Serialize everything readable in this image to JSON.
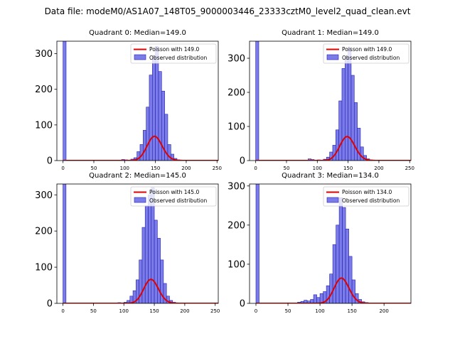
{
  "figure_title": "Data file: modeM0/AS1A07_148T05_9000003446_23333cztM0_level2_quad_clean.evt",
  "colors": {
    "bar_fill": "#7b7bea",
    "bar_edge": "#2222aa",
    "curve": "#e00000"
  },
  "chart_data": [
    {
      "type": "bar",
      "title": "Quadrant 0: Median=149.0",
      "xlim": [
        -10,
        252
      ],
      "ylim": [
        0,
        335
      ],
      "xticks": [
        0,
        50,
        100,
        150,
        200,
        250
      ],
      "yticks": [
        0,
        100,
        200,
        300
      ],
      "bar_width": 5,
      "bins": [
        [
          0,
          335
        ],
        [
          95,
          3
        ],
        [
          100,
          2
        ],
        [
          110,
          4
        ],
        [
          115,
          8
        ],
        [
          120,
          25
        ],
        [
          125,
          45
        ],
        [
          130,
          85
        ],
        [
          135,
          150
        ],
        [
          140,
          240
        ],
        [
          145,
          295
        ],
        [
          150,
          320
        ],
        [
          155,
          250
        ],
        [
          160,
          195
        ],
        [
          165,
          130
        ],
        [
          170,
          45
        ],
        [
          175,
          18
        ],
        [
          180,
          6
        ],
        [
          185,
          2
        ],
        [
          195,
          1
        ]
      ],
      "poisson_lambda": 149.0,
      "poisson_n": 2080,
      "legend": [
        "Poisson with 149.0",
        "Observed distribution"
      ]
    },
    {
      "type": "bar",
      "title": "Quadrant 1: Median=149.0",
      "xlim": [
        -10,
        252
      ],
      "ylim": [
        0,
        350
      ],
      "xticks": [
        0,
        50,
        100,
        150,
        200,
        250
      ],
      "yticks": [
        0,
        100,
        200,
        300
      ],
      "bar_width": 5,
      "bins": [
        [
          0,
          350
        ],
        [
          85,
          5
        ],
        [
          90,
          3
        ],
        [
          100,
          2
        ],
        [
          110,
          4
        ],
        [
          115,
          10
        ],
        [
          120,
          25
        ],
        [
          125,
          45
        ],
        [
          130,
          90
        ],
        [
          135,
          175
        ],
        [
          140,
          270
        ],
        [
          145,
          305
        ],
        [
          150,
          330
        ],
        [
          155,
          250
        ],
        [
          160,
          170
        ],
        [
          165,
          95
        ],
        [
          170,
          40
        ],
        [
          175,
          15
        ],
        [
          180,
          5
        ],
        [
          185,
          2
        ]
      ],
      "poisson_lambda": 149.0,
      "poisson_n": 2150,
      "legend": [
        "Poisson with 149.0",
        "Observed distribution"
      ]
    },
    {
      "type": "bar",
      "title": "Quadrant 2: Median=145.0",
      "xlim": [
        -10,
        255
      ],
      "ylim": [
        0,
        330
      ],
      "xticks": [
        0,
        50,
        100,
        150,
        200,
        250
      ],
      "yticks": [
        0,
        100,
        200,
        300
      ],
      "bar_width": 5,
      "bins": [
        [
          0,
          330
        ],
        [
          80,
          1
        ],
        [
          90,
          2
        ],
        [
          100,
          3
        ],
        [
          105,
          8
        ],
        [
          110,
          20
        ],
        [
          115,
          35
        ],
        [
          120,
          65
        ],
        [
          125,
          120
        ],
        [
          130,
          210
        ],
        [
          135,
          270
        ],
        [
          140,
          300
        ],
        [
          145,
          320
        ],
        [
          150,
          230
        ],
        [
          155,
          180
        ],
        [
          160,
          120
        ],
        [
          165,
          55
        ],
        [
          170,
          20
        ],
        [
          175,
          8
        ],
        [
          180,
          3
        ]
      ],
      "poisson_lambda": 145.0,
      "poisson_n": 2000,
      "legend": [
        "Poisson with 145.0",
        "Observed distribution"
      ]
    },
    {
      "type": "bar",
      "title": "Quadrant 3: Median=134.0",
      "xlim": [
        -10,
        242
      ],
      "ylim": [
        0,
        305
      ],
      "xticks": [
        0,
        50,
        100,
        150,
        200
      ],
      "yticks": [
        0,
        100,
        200,
        300
      ],
      "bar_width": 5,
      "bins": [
        [
          0,
          305
        ],
        [
          65,
          3
        ],
        [
          70,
          5
        ],
        [
          75,
          8
        ],
        [
          80,
          6
        ],
        [
          85,
          10
        ],
        [
          90,
          22
        ],
        [
          95,
          15
        ],
        [
          100,
          25
        ],
        [
          105,
          30
        ],
        [
          110,
          45
        ],
        [
          115,
          75
        ],
        [
          120,
          150
        ],
        [
          125,
          200
        ],
        [
          130,
          270
        ],
        [
          135,
          245
        ],
        [
          140,
          190
        ],
        [
          145,
          120
        ],
        [
          150,
          60
        ],
        [
          155,
          25
        ],
        [
          160,
          10
        ],
        [
          165,
          4
        ],
        [
          170,
          2
        ],
        [
          200,
          1
        ]
      ],
      "poisson_lambda": 134.0,
      "poisson_n": 1870,
      "legend": [
        "Poisson with 134.0",
        "Observed distribution"
      ]
    }
  ]
}
